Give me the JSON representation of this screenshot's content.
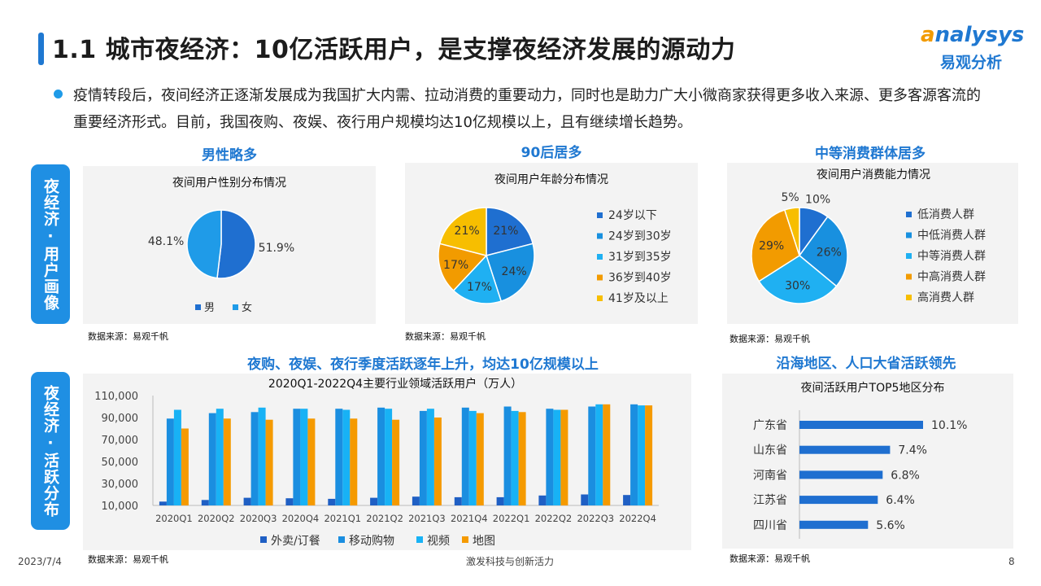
{
  "header": {
    "title": "1.1 城市夜经济：10亿活跃用户，是支撑夜经济发展的源动力",
    "logo_line1": "nalysys",
    "logo_a": "a",
    "logo_line2": "易观分析",
    "accent_color": "#1f78d1"
  },
  "intro": "疫情转段后，夜间经济正逐渐发展成为我国扩大内需、拉动消费的重要动力，同时也是助力广大小微商家获得更多收入来源、更多客源客流的重要经济形式。目前，我国夜购、夜娱、夜行用户规模均达10亿规模以上，且有继续增长趋势。",
  "sections": {
    "profile_label": "夜经济·用户画像",
    "activity_label": "夜经济·活跃分布",
    "gender_heading": "男性略多",
    "age_heading": "90后居多",
    "consume_heading": "中等消费群体居多",
    "industry_heading": "夜购、夜娱、夜行季度活跃逐年上升，均达10亿规模以上",
    "region_heading": "沿海地区、人口大省活跃领先"
  },
  "source": "数据来源：易观千帆",
  "footer": {
    "date": "2023/7/4",
    "center": "激发科技与创新活力",
    "page": "8"
  },
  "chart_data": [
    {
      "type": "pie",
      "title": "夜间用户性别分布情况",
      "categories": [
        "男",
        "女"
      ],
      "values": [
        51.9,
        48.1
      ],
      "labels": [
        "51.9%",
        "48.1%"
      ],
      "colors": [
        "#1f6fd0",
        "#1f9be8"
      ],
      "legend": "bottom"
    },
    {
      "type": "pie",
      "title": "夜间用户年龄分布情况",
      "categories": [
        "24岁以下",
        "24岁到30岁",
        "31岁到35岁",
        "36岁到40岁",
        "41岁及以上"
      ],
      "values": [
        21,
        24,
        17,
        17,
        21
      ],
      "labels": [
        "21%",
        "24%",
        "17%",
        "17%",
        "21%"
      ],
      "colors": [
        "#1f6fd0",
        "#1890df",
        "#1fb0f2",
        "#f29b00",
        "#f7be00"
      ],
      "legend": "right"
    },
    {
      "type": "pie",
      "title": "夜间用户消费能力情况",
      "categories": [
        "低消费人群",
        "中低消费人群",
        "中等消费人群",
        "中高消费人群",
        "高消费人群"
      ],
      "values": [
        10,
        26,
        30,
        29,
        5
      ],
      "labels": [
        "10%",
        "26%",
        "30%",
        "29%",
        "5%"
      ],
      "colors": [
        "#1f6fd0",
        "#1890df",
        "#1fb0f2",
        "#f29b00",
        "#f7be00"
      ],
      "legend": "right"
    },
    {
      "type": "bar",
      "title": "2020Q1-2022Q4主要行业领域活跃用户（万人）",
      "categories": [
        "2020Q1",
        "2020Q2",
        "2020Q3",
        "2020Q4",
        "2021Q1",
        "2021Q2",
        "2021Q3",
        "2021Q4",
        "2022Q1",
        "2022Q2",
        "2022Q3",
        "2022Q4"
      ],
      "series": [
        {
          "name": "外卖/订餐",
          "color": "#1f5fc4",
          "values": [
            13500,
            15000,
            17000,
            16500,
            16000,
            17000,
            18000,
            17500,
            17500,
            19000,
            20000,
            19500
          ]
        },
        {
          "name": "移动购物",
          "color": "#1a8ee0",
          "values": [
            89000,
            94000,
            95000,
            98000,
            98000,
            99000,
            96000,
            99000,
            100000,
            98000,
            100000,
            102000
          ]
        },
        {
          "name": "视频",
          "color": "#18b2f5",
          "values": [
            97000,
            98000,
            99000,
            98000,
            97000,
            98000,
            98000,
            96000,
            96000,
            97000,
            102000,
            101000
          ]
        },
        {
          "name": "地图",
          "color": "#f59a00",
          "values": [
            80000,
            89000,
            88000,
            89000,
            89000,
            88000,
            90000,
            94000,
            95000,
            97000,
            102000,
            101000
          ]
        }
      ],
      "yticks": [
        "110,000",
        "90,000",
        "70,000",
        "50,000",
        "30,000",
        "10,000"
      ],
      "ylim": [
        10000,
        110000
      ],
      "legend": "bottom"
    },
    {
      "type": "bar",
      "orientation": "horizontal",
      "title": "夜间活跃用户TOP5地区分布",
      "categories": [
        "广东省",
        "山东省",
        "河南省",
        "江苏省",
        "四川省"
      ],
      "values": [
        10.1,
        7.4,
        6.8,
        6.4,
        5.6
      ],
      "labels": [
        "10.1%",
        "7.4%",
        "6.8%",
        "6.4%",
        "5.6%"
      ],
      "color": "#1f6fd0"
    }
  ]
}
